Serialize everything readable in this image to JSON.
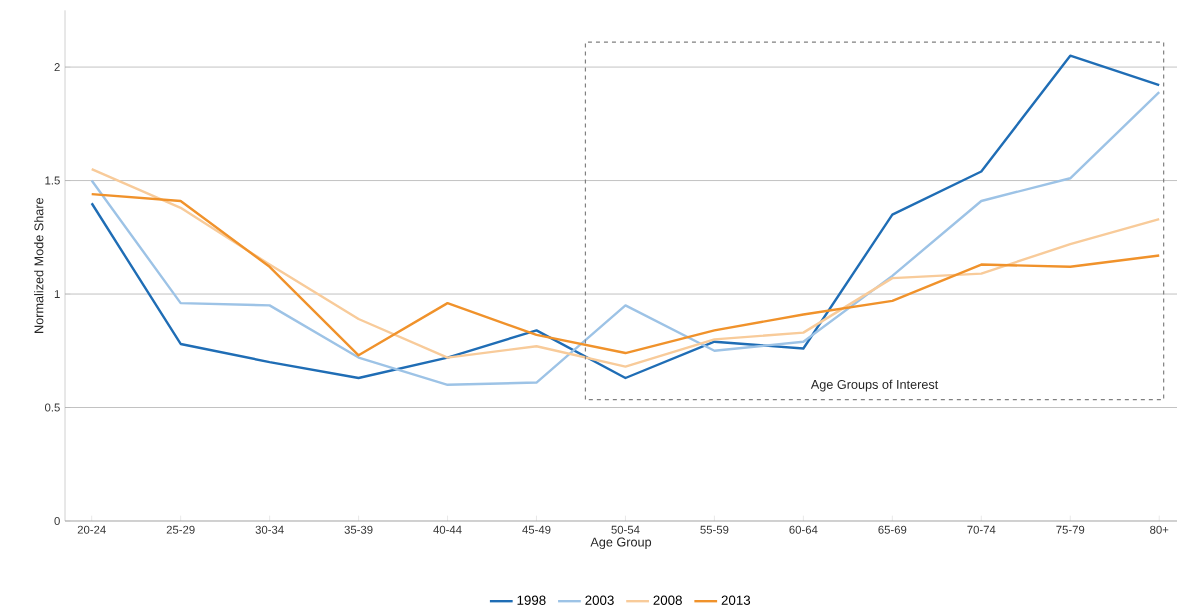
{
  "chart_data": {
    "type": "line",
    "xlabel": "Age Group",
    "ylabel": "Normalized Mode Share",
    "categories": [
      "20-24",
      "25-29",
      "30-34",
      "35-39",
      "40-44",
      "45-49",
      "50-54",
      "55-59",
      "60-64",
      "65-69",
      "70-74",
      "75-79",
      "80+"
    ],
    "series": [
      {
        "name": "1998",
        "color": "#1f6db5",
        "values": [
          1.4,
          0.78,
          0.7,
          0.63,
          0.72,
          0.84,
          0.63,
          0.79,
          0.76,
          1.35,
          1.54,
          2.05,
          1.92
        ]
      },
      {
        "name": "2003",
        "color": "#9dc3e6",
        "values": [
          1.5,
          0.96,
          0.95,
          0.72,
          0.6,
          0.61,
          0.95,
          0.75,
          0.79,
          1.08,
          1.41,
          1.51,
          1.89
        ]
      },
      {
        "name": "2008",
        "color": "#f8cb9a",
        "values": [
          1.55,
          1.38,
          1.13,
          0.89,
          0.72,
          0.77,
          0.68,
          0.8,
          0.83,
          1.07,
          1.09,
          1.22,
          1.33
        ]
      },
      {
        "name": "2013",
        "color": "#f0922b",
        "values": [
          1.44,
          1.41,
          1.12,
          0.73,
          0.96,
          0.82,
          0.74,
          0.84,
          0.91,
          0.97,
          1.13,
          1.12,
          1.17
        ]
      }
    ],
    "ylim": [
      0,
      2.25
    ],
    "yticks": [
      0,
      0.5,
      1,
      1.5,
      2
    ],
    "grid": "y",
    "legend": "bottom",
    "marker": "none",
    "line_style": "solid",
    "annotations": [
      "Age Groups of Interest"
    ]
  }
}
